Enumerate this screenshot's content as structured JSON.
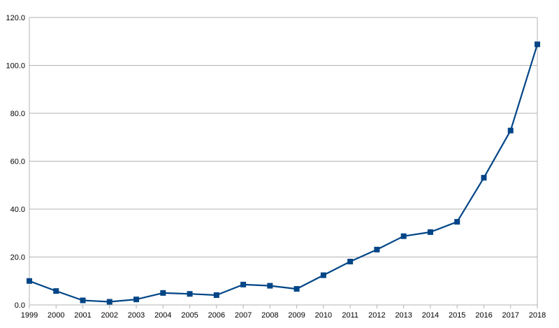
{
  "chart_data": {
    "type": "line",
    "title": "",
    "xlabel": "",
    "ylabel": "",
    "categories": [
      "1999",
      "2000",
      "2001",
      "2002",
      "2003",
      "2004",
      "2005",
      "2006",
      "2007",
      "2008",
      "2009",
      "2010",
      "2011",
      "2012",
      "2013",
      "2014",
      "2015",
      "2016",
      "2017",
      "2018"
    ],
    "series": [
      {
        "values": [
          10.0,
          5.8,
          1.9,
          1.3,
          2.3,
          5.0,
          4.6,
          4.1,
          8.5,
          8.0,
          6.7,
          12.4,
          18.1,
          23.1,
          28.7,
          30.4,
          34.7,
          53.1,
          72.8,
          108.8
        ],
        "color": "#004586",
        "marker": "square"
      }
    ],
    "ylim": [
      0,
      120
    ],
    "yticks": [
      "0.0",
      "20.0",
      "40.0",
      "60.0",
      "80.0",
      "100.0",
      "120.0"
    ],
    "ytick_values": [
      0,
      20,
      40,
      60,
      80,
      100,
      120
    ],
    "grid": "horizontal",
    "legend": "none",
    "colors": {
      "gridline": "#b3b3b3",
      "text": "#000000",
      "background": "#ffffff"
    }
  }
}
